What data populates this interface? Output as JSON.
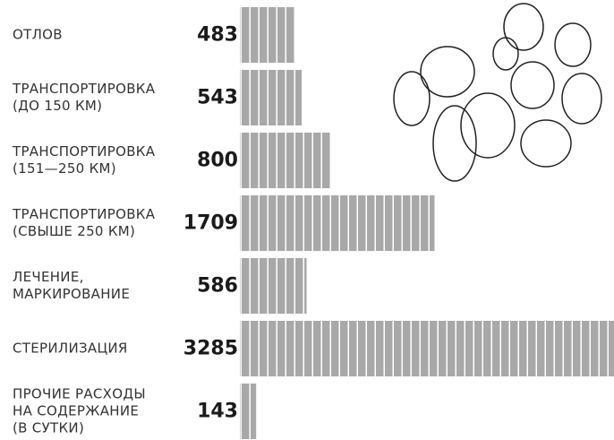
{
  "chart_data": {
    "type": "bar",
    "orientation": "horizontal",
    "categories": [
      "ОТЛОВ",
      "ТРАНСПОРТИРОВКА\n(ДО 150 КМ)",
      "ТРАНСПОРТИРОВКА\n(151—250 КМ)",
      "ТРАНСПОРТИРОВКА\n(СВЫШЕ 250 КМ)",
      "ЛЕЧЕНИЕ,\nМАРКИРОВАНИЕ",
      "СТЕРИЛИЗАЦИЯ",
      "ПРОЧИЕ РАСХОДЫ\nНА СОДЕРЖАНИЕ\n(В СУТКИ)"
    ],
    "values": [
      483,
      543,
      800,
      1709,
      586,
      3285,
      143
    ],
    "color": "#a8a8a8"
  }
}
